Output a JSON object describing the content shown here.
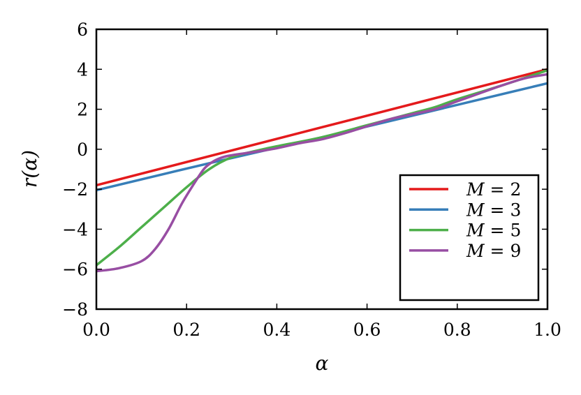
{
  "chart_data": {
    "type": "line",
    "xlabel": "α",
    "ylabel": "r(α)",
    "xlim": [
      0.0,
      1.0
    ],
    "ylim": [
      -8,
      6
    ],
    "xticks": [
      0.0,
      0.2,
      0.4,
      0.6,
      0.8,
      1.0
    ],
    "xtick_labels": [
      "0.0",
      "0.2",
      "0.4",
      "0.6",
      "0.8",
      "1.0"
    ],
    "yticks": [
      -8,
      -6,
      -4,
      -2,
      0,
      2,
      4,
      6
    ],
    "ytick_labels": [
      "−8",
      "−6",
      "−4",
      "−2",
      "0",
      "2",
      "4",
      "6"
    ],
    "grid": false,
    "legend_position": "bottom-right",
    "series": [
      {
        "name": "M = 2",
        "legend_var": "M",
        "legend_rest": " = 2",
        "color": "#e41a1c",
        "x": [
          0.0,
          1.0
        ],
        "y": [
          -1.8,
          4.0
        ]
      },
      {
        "name": "M = 3",
        "legend_var": "M",
        "legend_rest": " = 3",
        "color": "#377eb8",
        "x": [
          0.0,
          0.25,
          0.5,
          0.75,
          1.0
        ],
        "y": [
          -2.05,
          -0.7,
          0.6,
          1.95,
          3.3
        ]
      },
      {
        "name": "M = 5",
        "legend_var": "M",
        "legend_rest": " = 5",
        "color": "#4daf4a",
        "x": [
          0.0,
          0.05,
          0.1,
          0.15,
          0.2,
          0.25,
          0.3,
          0.35,
          0.4,
          0.5,
          0.6,
          0.7,
          0.75,
          0.8,
          0.9,
          1.0
        ],
        "y": [
          -5.8,
          -4.9,
          -3.9,
          -2.9,
          -1.9,
          -1.0,
          -0.4,
          -0.1,
          0.15,
          0.6,
          1.2,
          1.8,
          2.1,
          2.5,
          3.2,
          3.95
        ]
      },
      {
        "name": "M = 9",
        "legend_var": "M",
        "legend_rest": " = 9",
        "color": "#984ea3",
        "x": [
          0.0,
          0.05,
          0.1,
          0.13,
          0.16,
          0.19,
          0.22,
          0.24,
          0.26,
          0.28,
          0.3,
          0.33,
          0.36,
          0.4,
          0.45,
          0.5,
          0.55,
          0.6,
          0.65,
          0.7,
          0.75,
          0.8,
          0.85,
          0.9,
          0.95,
          1.0
        ],
        "y": [
          -6.1,
          -5.95,
          -5.6,
          -5.0,
          -4.0,
          -2.7,
          -1.6,
          -0.95,
          -0.6,
          -0.4,
          -0.3,
          -0.2,
          -0.1,
          0.05,
          0.3,
          0.5,
          0.8,
          1.15,
          1.5,
          1.75,
          2.0,
          2.4,
          2.8,
          3.2,
          3.55,
          3.75
        ]
      }
    ]
  }
}
